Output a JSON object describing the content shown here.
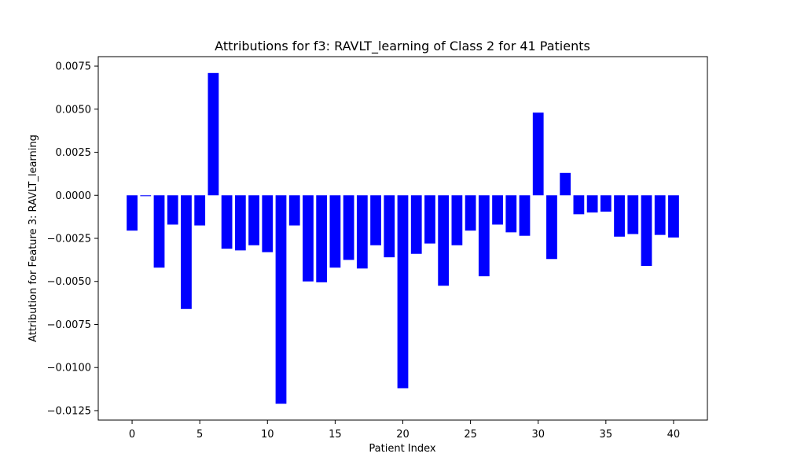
{
  "chart_data": {
    "type": "bar",
    "title": "Attributions for f3: RAVLT_learning of Class 2 for 41 Patients",
    "xlabel": "Patient Index",
    "ylabel": "Attribution for Feature 3: RAVLT_learning",
    "bar_color": "#0000ff",
    "x": [
      0,
      1,
      2,
      3,
      4,
      5,
      6,
      7,
      8,
      9,
      10,
      11,
      12,
      13,
      14,
      15,
      16,
      17,
      18,
      19,
      20,
      21,
      22,
      23,
      24,
      25,
      26,
      27,
      28,
      29,
      30,
      31,
      32,
      33,
      34,
      35,
      36,
      37,
      38,
      39,
      40
    ],
    "values": [
      -0.00205,
      -5e-05,
      -0.0042,
      -0.0017,
      -0.0066,
      -0.00175,
      0.0071,
      -0.0031,
      -0.0032,
      -0.0029,
      -0.0033,
      -0.0121,
      -0.00175,
      -0.005,
      -0.00505,
      -0.0042,
      -0.00375,
      -0.00425,
      -0.0029,
      -0.0036,
      -0.0112,
      -0.0034,
      -0.0028,
      -0.00525,
      -0.0029,
      -0.00205,
      -0.0047,
      -0.0017,
      -0.00215,
      -0.00235,
      0.0048,
      -0.0037,
      0.0013,
      -0.0011,
      -0.001,
      -0.00095,
      -0.0024,
      -0.00225,
      -0.0041,
      -0.0023,
      -0.00245
    ],
    "xlim": [
      -2.5,
      42.5
    ],
    "ylim": [
      -0.01305,
      0.00805
    ],
    "x_ticks": [
      0,
      5,
      10,
      15,
      20,
      25,
      30,
      35,
      40
    ],
    "x_tick_labels": [
      "0",
      "5",
      "10",
      "15",
      "20",
      "25",
      "30",
      "35",
      "40"
    ],
    "y_ticks": [
      -0.0125,
      -0.01,
      -0.0075,
      -0.005,
      -0.0025,
      0.0,
      0.0025,
      0.005,
      0.0075
    ],
    "y_tick_labels": [
      "−0.0125",
      "−0.0100",
      "−0.0075",
      "−0.0050",
      "−0.0025",
      "0.0000",
      "0.0025",
      "0.0050",
      "0.0075"
    ],
    "grid": false,
    "legend": false
  }
}
